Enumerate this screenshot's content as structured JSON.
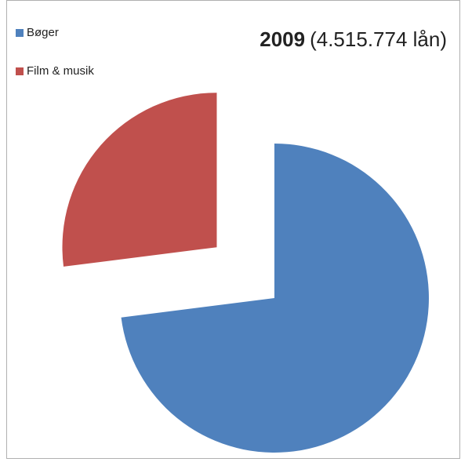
{
  "chart_data": {
    "type": "pie",
    "title": "2009",
    "subtitle": "(4.515.774 lån)",
    "categories": [
      "Bøger",
      "Film & musik"
    ],
    "values": [
      73,
      27
    ],
    "colors": [
      "#4f81bd",
      "#c0504d"
    ],
    "explode": [
      false,
      true
    ],
    "legend": "top-left"
  }
}
